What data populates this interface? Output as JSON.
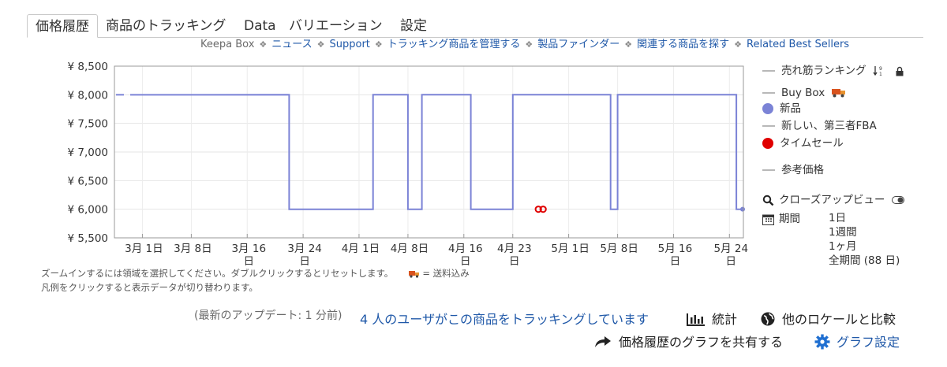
{
  "tabs": [
    "価格履歴",
    "商品のトラッキング",
    "Data",
    "バリエーション",
    "設定"
  ],
  "linkbar": {
    "brand": "Keepa Box",
    "links": [
      "ニュース",
      "Support",
      "トラッキング商品を管理する",
      "製品ファインダー",
      "関連する商品を探す",
      "Related Best Sellers"
    ]
  },
  "chart_data": {
    "type": "line",
    "title": "",
    "xlabel": "",
    "ylabel": "",
    "ylim": [
      5500,
      8500
    ],
    "y_ticks": [
      "¥ 8,500",
      "¥ 8,000",
      "¥ 7,500",
      "¥ 7,000",
      "¥ 6,500",
      "¥ 6,000",
      "¥ 5,500"
    ],
    "x_ticks": [
      [
        "3月 1日"
      ],
      [
        "3月 8日"
      ],
      [
        "3月 16",
        "日"
      ],
      [
        "3月 24",
        "日"
      ],
      [
        "4月 1日"
      ],
      [
        "4月 8日"
      ],
      [
        "4月 16",
        "日"
      ],
      [
        "4月 23",
        "日"
      ],
      [
        "5月 1日"
      ],
      [
        "5月 8日"
      ],
      [
        "5月 16",
        "日"
      ],
      [
        "5月 24",
        "日"
      ]
    ],
    "grid": true,
    "series": [
      {
        "name": "新品",
        "color": "#7b83d6",
        "points": [
          [
            "02-25",
            8000
          ],
          [
            "03-21",
            8000
          ],
          [
            "03-21",
            6000
          ],
          [
            "04-02",
            6000
          ],
          [
            "04-02",
            8000
          ],
          [
            "04-07",
            8000
          ],
          [
            "04-07",
            6000
          ],
          [
            "04-09",
            6000
          ],
          [
            "04-09",
            8000
          ],
          [
            "04-16",
            8000
          ],
          [
            "04-16",
            6000
          ],
          [
            "04-22",
            6000
          ],
          [
            "04-22",
            8000
          ],
          [
            "05-06",
            8000
          ],
          [
            "05-06",
            6000
          ],
          [
            "05-07",
            6000
          ],
          [
            "05-07",
            8000
          ],
          [
            "05-24",
            8000
          ],
          [
            "05-24",
            6000
          ],
          [
            "05-25",
            6000
          ]
        ]
      },
      {
        "name": "タイムセール",
        "color": "#e00000",
        "points": [
          [
            "04-26",
            6000
          ],
          [
            "04-26",
            6000
          ]
        ]
      }
    ]
  },
  "legend": {
    "items": [
      {
        "label": "売れ筋ランキング",
        "kind": "line",
        "color": "#b8b8b8"
      },
      {
        "label": "Buy Box",
        "kind": "line",
        "color": "#b8b8b8"
      },
      {
        "label": "新品",
        "kind": "dot",
        "color": "#7b83d6"
      },
      {
        "label": "新しい、第三者FBA",
        "kind": "line",
        "color": "#b8b8b8"
      },
      {
        "label": "タイムセール",
        "kind": "dot",
        "color": "#e00000"
      },
      {
        "label": "参考価格",
        "kind": "line",
        "color": "#b8b8b8"
      }
    ],
    "closeup": "クローズアップビュー",
    "period_label": "期間",
    "periods": [
      "1日",
      "1週間",
      "1ヶ月",
      "全期間 (88 日)"
    ]
  },
  "notes": {
    "line1": "ズームインするには領域を選択してください。ダブルクリックするとリセットします。",
    "shipping": "= 送料込み",
    "line2": "凡例をクリックすると表示データが切り替わります。"
  },
  "footer": {
    "updated": "(最新のアップデート: 1 分前)",
    "tracking": "4 人のユーザがこの商品をトラッキングしています",
    "stats": "統計",
    "compare": "他のロケールと比較",
    "share": "価格履歴のグラフを共有する",
    "settings": "グラフ設定"
  }
}
